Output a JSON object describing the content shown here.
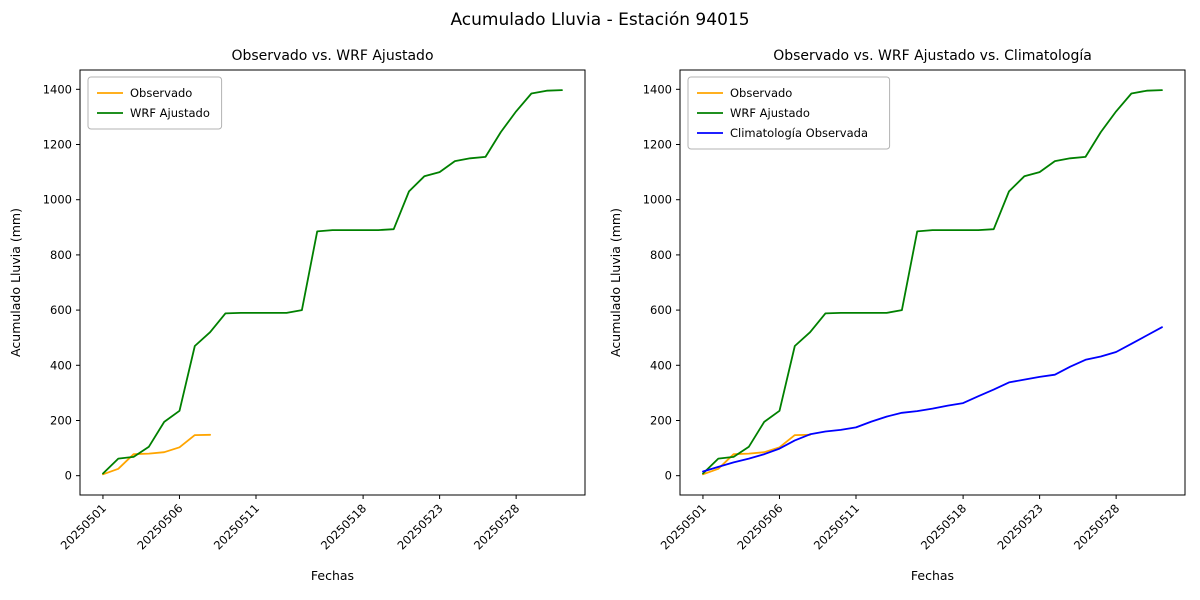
{
  "figure": {
    "suptitle": "Acumulado Lluvia - Estación 94015",
    "background": "#ffffff"
  },
  "chart_data": [
    {
      "type": "line",
      "title": "Observado vs. WRF Ajustado",
      "xlabel": "Fechas",
      "ylabel": "Acumulado Lluvia (mm)",
      "ylim": [
        -70,
        1470
      ],
      "yticks": [
        0,
        200,
        400,
        600,
        800,
        1000,
        1200,
        1400
      ],
      "xlim": [
        -0.5,
        32.5
      ],
      "xticks": [
        {
          "pos": 1,
          "label": "20250501"
        },
        {
          "pos": 6,
          "label": "20250506"
        },
        {
          "pos": 11,
          "label": "20250511"
        },
        {
          "pos": 18,
          "label": "20250518"
        },
        {
          "pos": 23,
          "label": "20250523"
        },
        {
          "pos": 28,
          "label": "20250528"
        }
      ],
      "grid": false,
      "legend_position": "upper-left",
      "series": [
        {
          "name": "Observado",
          "color": "#ffa500",
          "x": [
            1,
            2,
            3,
            4,
            5,
            6,
            7,
            8
          ],
          "y": [
            5,
            25,
            78,
            80,
            85,
            103,
            147,
            148
          ]
        },
        {
          "name": "WRF Ajustado",
          "color": "#008000",
          "x": [
            1,
            2,
            3,
            4,
            5,
            6,
            7,
            8,
            9,
            10,
            11,
            12,
            13,
            14,
            15,
            16,
            17,
            18,
            19,
            20,
            21,
            22,
            23,
            24,
            25,
            26,
            27,
            28,
            29,
            30,
            31
          ],
          "y": [
            8,
            62,
            68,
            105,
            195,
            235,
            470,
            520,
            588,
            590,
            590,
            590,
            590,
            600,
            885,
            890,
            890,
            890,
            890,
            893,
            1030,
            1085,
            1100,
            1140,
            1150,
            1155,
            1245,
            1320,
            1385,
            1395,
            1397
          ]
        }
      ]
    },
    {
      "type": "line",
      "title": "Observado vs. WRF Ajustado vs. Climatología",
      "xlabel": "Fechas",
      "ylabel": "Acumulado Lluvia (mm)",
      "ylim": [
        -70,
        1470
      ],
      "yticks": [
        0,
        200,
        400,
        600,
        800,
        1000,
        1200,
        1400
      ],
      "xlim": [
        -0.5,
        32.5
      ],
      "xticks": [
        {
          "pos": 1,
          "label": "20250501"
        },
        {
          "pos": 6,
          "label": "20250506"
        },
        {
          "pos": 11,
          "label": "20250511"
        },
        {
          "pos": 18,
          "label": "20250518"
        },
        {
          "pos": 23,
          "label": "20250523"
        },
        {
          "pos": 28,
          "label": "20250528"
        }
      ],
      "grid": false,
      "legend_position": "upper-left",
      "series": [
        {
          "name": "Observado",
          "color": "#ffa500",
          "x": [
            1,
            2,
            3,
            4,
            5,
            6,
            7,
            8
          ],
          "y": [
            5,
            25,
            78,
            80,
            85,
            103,
            147,
            148
          ]
        },
        {
          "name": "WRF Ajustado",
          "color": "#008000",
          "x": [
            1,
            2,
            3,
            4,
            5,
            6,
            7,
            8,
            9,
            10,
            11,
            12,
            13,
            14,
            15,
            16,
            17,
            18,
            19,
            20,
            21,
            22,
            23,
            24,
            25,
            26,
            27,
            28,
            29,
            30,
            31
          ],
          "y": [
            8,
            62,
            68,
            105,
            195,
            235,
            470,
            520,
            588,
            590,
            590,
            590,
            590,
            600,
            885,
            890,
            890,
            890,
            890,
            893,
            1030,
            1085,
            1100,
            1140,
            1150,
            1155,
            1245,
            1320,
            1385,
            1395,
            1397
          ]
        },
        {
          "name": "Climatología Observada",
          "color": "#0000ff",
          "x": [
            1,
            2,
            3,
            4,
            5,
            6,
            7,
            8,
            9,
            10,
            11,
            12,
            13,
            14,
            15,
            16,
            17,
            18,
            19,
            20,
            21,
            22,
            23,
            24,
            25,
            26,
            27,
            28,
            29,
            30,
            31
          ],
          "y": [
            15,
            32,
            48,
            62,
            78,
            98,
            128,
            150,
            160,
            166,
            175,
            196,
            214,
            228,
            234,
            243,
            254,
            263,
            288,
            312,
            338,
            348,
            358,
            366,
            395,
            420,
            432,
            448,
            478,
            508,
            538
          ]
        }
      ]
    }
  ]
}
